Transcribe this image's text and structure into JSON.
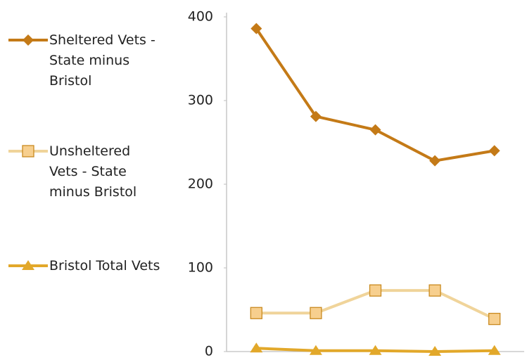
{
  "chart_data": {
    "type": "line",
    "categories": [
      null,
      null,
      null,
      null,
      null
    ],
    "series": [
      {
        "name": "Sheltered Vets - State minus Bristol",
        "color": "#c47a17",
        "marker": "diamond",
        "marker_color": "#c47a17",
        "values": [
          386,
          281,
          265,
          228,
          240
        ]
      },
      {
        "name": "Unsheltered Vets - State minus Bristol",
        "color": "#f0d49a",
        "marker": "square",
        "marker_color": "#f7cf8e",
        "values": [
          46,
          46,
          73,
          73,
          39
        ]
      },
      {
        "name": "Bristol Total Vets",
        "color": "#e2a82a",
        "marker": "triangle",
        "marker_color": "#e2a82a",
        "values": [
          4,
          1,
          1,
          0,
          1
        ]
      }
    ],
    "ylim": [
      0,
      400
    ],
    "yticks": [
      0,
      100,
      200,
      300,
      400
    ],
    "grid": false,
    "legend": "left"
  }
}
